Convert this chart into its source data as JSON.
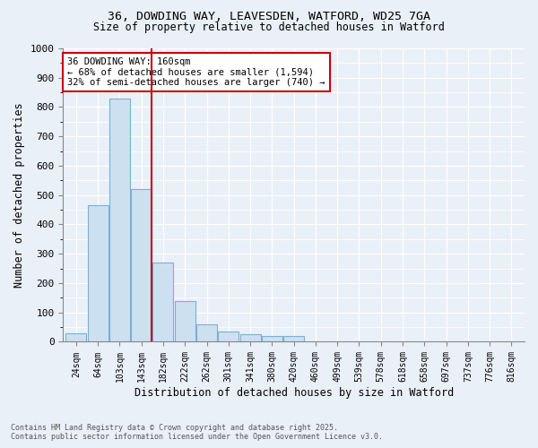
{
  "title_line1": "36, DOWDING WAY, LEAVESDEN, WATFORD, WD25 7GA",
  "title_line2": "Size of property relative to detached houses in Watford",
  "xlabel": "Distribution of detached houses by size in Watford",
  "ylabel": "Number of detached properties",
  "bins": [
    "24sqm",
    "64sqm",
    "103sqm",
    "143sqm",
    "182sqm",
    "222sqm",
    "262sqm",
    "301sqm",
    "341sqm",
    "380sqm",
    "420sqm",
    "460sqm",
    "499sqm",
    "539sqm",
    "578sqm",
    "618sqm",
    "658sqm",
    "697sqm",
    "737sqm",
    "776sqm",
    "816sqm"
  ],
  "bar_heights": [
    30,
    465,
    830,
    520,
    270,
    140,
    60,
    35,
    25,
    20,
    20,
    0,
    0,
    0,
    0,
    0,
    0,
    0,
    0,
    0,
    0
  ],
  "bar_color": "#cce0f0",
  "bar_edge_color": "#7ab0d4",
  "ylim": [
    0,
    1000
  ],
  "yticks": [
    0,
    100,
    200,
    300,
    400,
    500,
    600,
    700,
    800,
    900,
    1000
  ],
  "property_line_color": "#cc0000",
  "annotation_text": "36 DOWDING WAY: 160sqm\n← 68% of detached houses are smaller (1,594)\n32% of semi-detached houses are larger (740) →",
  "annotation_box_color": "#cc0000",
  "footer_line1": "Contains HM Land Registry data © Crown copyright and database right 2025.",
  "footer_line2": "Contains public sector information licensed under the Open Government Licence v3.0.",
  "background_color": "#eaf0f8",
  "grid_color": "#ffffff"
}
